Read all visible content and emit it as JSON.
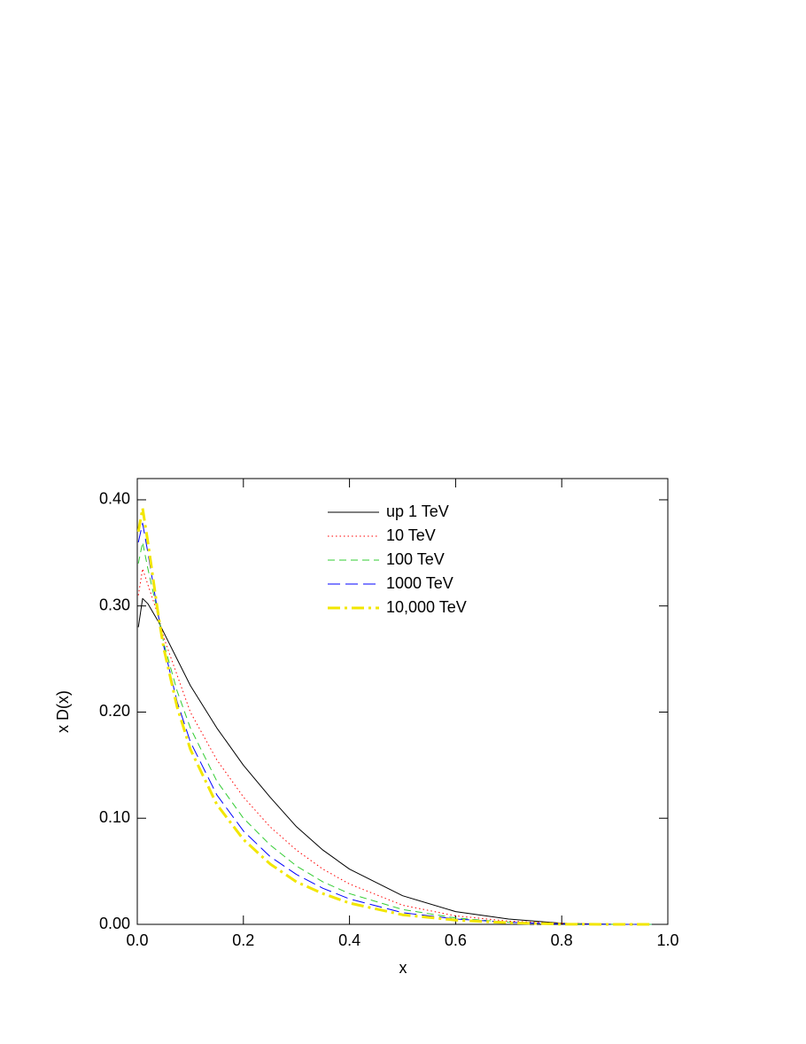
{
  "chart_data": {
    "type": "line",
    "xlabel": "x",
    "ylabel": "x D(x)",
    "xlim": [
      0,
      1
    ],
    "ylim": [
      0,
      0.42
    ],
    "xticks": [
      {
        "value": 0,
        "label": "0.0"
      },
      {
        "value": 0.2,
        "label": "0.2"
      },
      {
        "value": 0.4,
        "label": "0.4"
      },
      {
        "value": 0.6,
        "label": "0.6"
      },
      {
        "value": 0.8,
        "label": "0.8"
      },
      {
        "value": 1,
        "label": "1.0"
      }
    ],
    "yticks": [
      {
        "value": 0,
        "label": "0.00"
      },
      {
        "value": 0.1,
        "label": "0.10"
      },
      {
        "value": 0.2,
        "label": "0.20"
      },
      {
        "value": 0.3,
        "label": "0.30"
      },
      {
        "value": 0.4,
        "label": "0.40"
      }
    ],
    "grid": false,
    "legend": "top-center",
    "x": [
      0.002,
      0.01,
      0.02,
      0.04,
      0.05,
      0.075,
      0.1,
      0.15,
      0.2,
      0.25,
      0.3,
      0.35,
      0.4,
      0.5,
      0.6,
      0.7,
      0.8,
      0.9,
      0.97
    ],
    "series": [
      {
        "name": "up 1 TeV",
        "color": "#000000",
        "dash": "solid",
        "width": 1,
        "values": [
          0.28,
          0.307,
          0.302,
          0.285,
          0.275,
          0.25,
          0.225,
          0.185,
          0.15,
          0.12,
          0.092,
          0.07,
          0.052,
          0.027,
          0.012,
          0.005,
          0.001,
          0,
          0
        ]
      },
      {
        "name": "10 TeV",
        "color": "#ff0000",
        "dash": "dotted",
        "width": 1,
        "values": [
          0.31,
          0.335,
          0.32,
          0.29,
          0.27,
          0.235,
          0.2,
          0.155,
          0.12,
          0.092,
          0.07,
          0.052,
          0.038,
          0.018,
          0.008,
          0.003,
          0.001,
          0,
          0
        ]
      },
      {
        "name": "100 TeV",
        "color": "#33cc33",
        "dash": "dashed",
        "width": 1,
        "values": [
          0.34,
          0.36,
          0.335,
          0.29,
          0.265,
          0.22,
          0.185,
          0.135,
          0.1,
          0.075,
          0.055,
          0.04,
          0.029,
          0.014,
          0.006,
          0.002,
          0.0005,
          0,
          0
        ]
      },
      {
        "name": "1000 TeV",
        "color": "#0000ff",
        "dash": "longdash",
        "width": 1,
        "values": [
          0.36,
          0.378,
          0.35,
          0.29,
          0.262,
          0.21,
          0.172,
          0.122,
          0.088,
          0.064,
          0.047,
          0.034,
          0.024,
          0.011,
          0.005,
          0.002,
          0.0003,
          0,
          0
        ]
      },
      {
        "name": "10,000 TeV",
        "color": "#f2e600",
        "dash": "dashdot",
        "width": 3,
        "values": [
          0.37,
          0.392,
          0.36,
          0.29,
          0.26,
          0.205,
          0.165,
          0.113,
          0.08,
          0.057,
          0.04,
          0.029,
          0.02,
          0.009,
          0.004,
          0.0015,
          0.0002,
          0,
          0
        ]
      }
    ]
  }
}
